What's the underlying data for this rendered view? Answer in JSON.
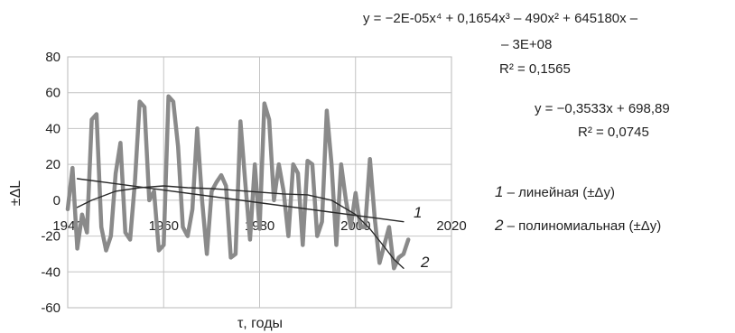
{
  "chart_data": {
    "type": "line",
    "xlabel": "τ, годы",
    "ylabel": "±ΔL",
    "xlim": [
      1940,
      2020
    ],
    "ylim": [
      -60,
      80
    ],
    "x_ticks": [
      "1940",
      "1960",
      "1980",
      "2000",
      "2020"
    ],
    "y_ticks": [
      "80",
      "60",
      "40",
      "20",
      "0",
      "-20",
      "-40",
      "-60"
    ],
    "grid": true,
    "series": [
      {
        "x": [
          1940,
          1941,
          1942,
          1943,
          1944,
          1945,
          1946,
          1947,
          1948,
          1949,
          1950,
          1951,
          1952,
          1953,
          1954,
          1955,
          1956,
          1957,
          1958,
          1959,
          1960,
          1961,
          1962,
          1963,
          1964,
          1965,
          1966,
          1967,
          1968,
          1969,
          1970,
          1971,
          1972,
          1973,
          1974,
          1975,
          1976,
          1977,
          1978,
          1979,
          1980,
          1981,
          1982,
          1983,
          1984,
          1985,
          1986,
          1987,
          1988,
          1989,
          1990,
          1991,
          1992,
          1993,
          1994,
          1995,
          1996,
          1997,
          1998,
          1999,
          2000,
          2001,
          2002,
          2003,
          2004,
          2005,
          2006,
          2007,
          2008,
          2009,
          2010,
          2011
        ],
        "values": [
          -5,
          18,
          -27,
          -8,
          -18,
          45,
          48,
          -15,
          -28,
          -20,
          15,
          32,
          -18,
          -22,
          10,
          55,
          52,
          0,
          5,
          -28,
          -25,
          58,
          55,
          30,
          -15,
          -20,
          -5,
          40,
          0,
          -30,
          5,
          10,
          14,
          8,
          -32,
          -30,
          44,
          10,
          -22,
          20,
          -16,
          54,
          45,
          0,
          20,
          5,
          -20,
          20,
          15,
          -25,
          22,
          20,
          -20,
          -12,
          50,
          20,
          -25,
          20,
          0,
          -15,
          4,
          -15,
          -15,
          23,
          -10,
          -35,
          -25,
          -15,
          -38,
          -32,
          -30,
          -22
        ]
      },
      {
        "x": [
          1942,
          2010
        ],
        "values": [
          12,
          -12
        ]
      },
      {
        "x": [
          1942,
          1945,
          1950,
          1955,
          1960,
          1965,
          1970,
          1975,
          1980,
          1985,
          1990,
          1995,
          2000,
          2003,
          2006,
          2008,
          2010
        ],
        "values": [
          -4,
          0,
          5,
          7,
          8,
          7,
          6.5,
          5.5,
          4.5,
          3.5,
          3,
          0,
          -8,
          -16,
          -26,
          -33,
          -38
        ]
      }
    ],
    "annotations": {
      "curve1": "1",
      "curve2": "2",
      "poly_eq_line1": "y = −2E-05x⁴ + 0,1654x³ – 490x² + 645180x –",
      "poly_eq_line2": "– 3E+08",
      "poly_r2": "R² = 0,1565",
      "lin_eq": "y = −0,3533x + 698,89",
      "lin_r2": "R² = 0,0745"
    },
    "legend": [
      {
        "num": "1",
        "text": " – линейная (±Δy)"
      },
      {
        "num": "2",
        "text": " – полиномиальная (±Δy)"
      }
    ]
  }
}
